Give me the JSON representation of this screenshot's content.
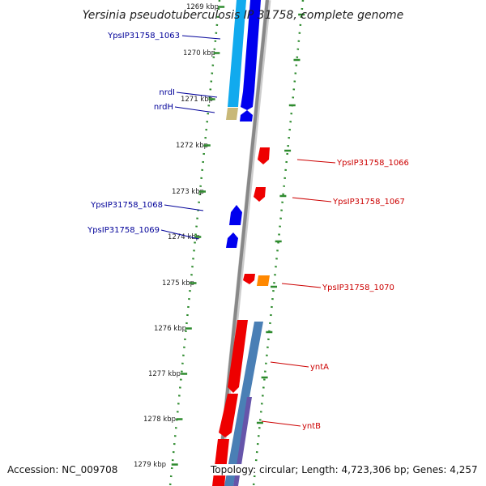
{
  "title": "Yersinia pseudotuberculosis IP 31758, complete genome",
  "accession": "Accession: NC_009708",
  "topology": "Topology: circular; Length: 4,723,306 bp; Genes: 4,257",
  "colors": {
    "backbone": "#888888",
    "ticks": "#2e8b2e",
    "forward_label": "#000099",
    "reverse_label": "#cc0000",
    "forward_gene": "#0000ee",
    "forward_gene_light": "#11aaee",
    "reverse_gene": "#ee0000",
    "reverse_gene_steel": "#4a7fb5",
    "rna": "#c8b878",
    "other": "#ff8800",
    "purple": "#6655aa"
  },
  "ticks": [
    "1269 kbp",
    "1270 kbp",
    "1271 kbp",
    "1272 kbp",
    "1273 kbp",
    "1274 kbp",
    "1275 kbp",
    "1276 kbp",
    "1277 kbp",
    "1278 kbp",
    "1279 kbp"
  ],
  "left_labels": [
    {
      "text": "YpsIP31758_1063"
    },
    {
      "text": "nrdI"
    },
    {
      "text": "nrdH"
    },
    {
      "text": "YpsIP31758_1068"
    },
    {
      "text": "YpsIP31758_1069"
    }
  ],
  "right_labels": [
    {
      "text": "YpsIP31758_1066"
    },
    {
      "text": "YpsIP31758_1067"
    },
    {
      "text": "YpsIP31758_1070"
    },
    {
      "text": "yntA"
    },
    {
      "text": "yntB"
    }
  ]
}
